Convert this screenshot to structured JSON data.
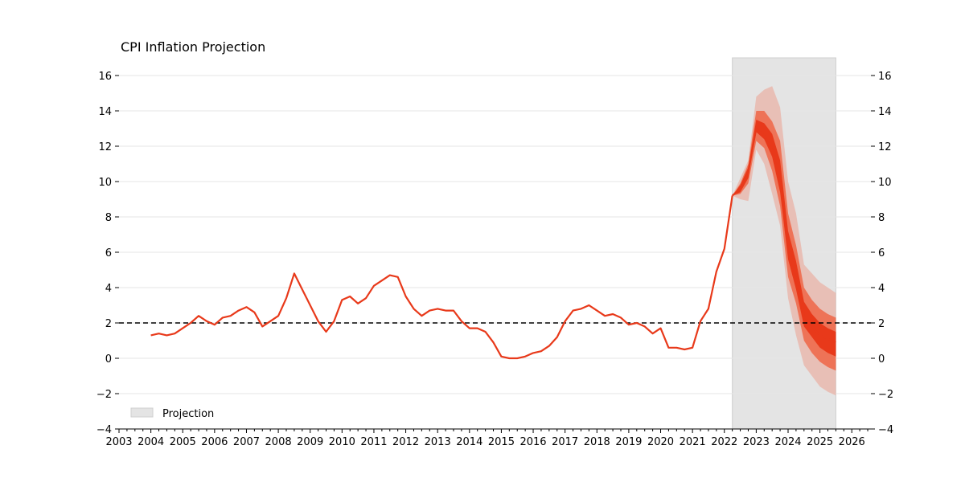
{
  "chart_data": {
    "type": "line",
    "title": "CPI Inflation Projection",
    "xlabel": "",
    "ylabel": "",
    "xlim": [
      2003,
      2026.6
    ],
    "ylim": [
      -4,
      17
    ],
    "x_ticks": [
      2003,
      2004,
      2005,
      2006,
      2007,
      2008,
      2009,
      2010,
      2011,
      2012,
      2013,
      2014,
      2015,
      2016,
      2017,
      2018,
      2019,
      2020,
      2021,
      2022,
      2023,
      2024,
      2025,
      2026
    ],
    "y_ticks": [
      -4,
      -2,
      0,
      2,
      4,
      6,
      8,
      10,
      12,
      14,
      16
    ],
    "grid": "horizontal",
    "target_line": {
      "y": 2,
      "style": "dashed",
      "color": "#000000"
    },
    "projection_region": {
      "label": "Projection",
      "x_start": 2022.25,
      "x_end": 2025.5,
      "color": "#e4e4e4"
    },
    "legend": {
      "position": "bottom-left",
      "entries": [
        "Projection"
      ]
    },
    "colors": {
      "line": "#e8391a",
      "band_inner": "#e8391a",
      "band_mid": "#ee7357",
      "band_outer": "#e8bfb6"
    },
    "series": [
      {
        "x": [
          2004.0,
          2004.25,
          2004.5,
          2004.75,
          2005.0,
          2005.25,
          2005.5,
          2005.75,
          2006.0,
          2006.25,
          2006.5,
          2006.75,
          2007.0,
          2007.25,
          2007.5,
          2007.75,
          2008.0,
          2008.25,
          2008.5,
          2008.75,
          2009.0,
          2009.25,
          2009.5,
          2009.75,
          2010.0,
          2010.25,
          2010.5,
          2010.75,
          2011.0,
          2011.25,
          2011.5,
          2011.75,
          2012.0,
          2012.25,
          2012.5,
          2012.75,
          2013.0,
          2013.25,
          2013.5,
          2013.75,
          2014.0,
          2014.25,
          2014.5,
          2014.75,
          2015.0,
          2015.25,
          2015.5,
          2015.75,
          2016.0,
          2016.25,
          2016.5,
          2016.75,
          2017.0,
          2017.25,
          2017.5,
          2017.75,
          2018.0,
          2018.25,
          2018.5,
          2018.75,
          2019.0,
          2019.25,
          2019.5,
          2019.75,
          2020.0,
          2020.25,
          2020.5,
          2020.75,
          2021.0,
          2021.25,
          2021.5,
          2021.75,
          2022.0,
          2022.25
        ],
        "values": [
          1.3,
          1.4,
          1.3,
          1.4,
          1.7,
          2.0,
          2.4,
          2.1,
          1.9,
          2.3,
          2.4,
          2.7,
          2.9,
          2.6,
          1.8,
          2.1,
          2.4,
          3.4,
          4.8,
          3.9,
          3.0,
          2.1,
          1.5,
          2.1,
          3.3,
          3.5,
          3.1,
          3.4,
          4.1,
          4.4,
          4.7,
          4.6,
          3.5,
          2.8,
          2.4,
          2.7,
          2.8,
          2.7,
          2.7,
          2.1,
          1.7,
          1.7,
          1.5,
          0.9,
          0.1,
          0.0,
          0.0,
          0.1,
          0.3,
          0.4,
          0.7,
          1.2,
          2.1,
          2.7,
          2.8,
          3.0,
          2.7,
          2.4,
          2.5,
          2.3,
          1.9,
          2.0,
          1.8,
          1.4,
          1.7,
          0.6,
          0.6,
          0.5,
          0.6,
          2.1,
          2.8,
          4.9,
          6.2,
          9.2
        ]
      },
      {
        "x": [
          2022.25,
          2022.5,
          2022.75,
          2023.0,
          2023.25,
          2023.5,
          2023.75,
          2024.0,
          2024.25,
          2024.5,
          2024.75,
          2025.0,
          2025.25,
          2025.5
        ],
        "values": [
          9.2,
          9.6,
          10.6,
          13.0,
          12.6,
          11.8,
          9.9,
          6.5,
          4.5,
          2.4,
          1.8,
          1.3,
          1.1,
          0.9
        ]
      }
    ],
    "fan_bands": {
      "x": [
        2022.25,
        2022.5,
        2022.75,
        2023.0,
        2023.25,
        2023.5,
        2023.75,
        2024.0,
        2024.25,
        2024.5,
        2024.75,
        2025.0,
        2025.25,
        2025.5
      ],
      "outer": {
        "low": [
          9.2,
          9.0,
          8.9,
          11.8,
          11.0,
          9.3,
          7.5,
          3.4,
          1.3,
          -0.4,
          -1.0,
          -1.6,
          -1.9,
          -2.1
        ],
        "high": [
          9.2,
          10.2,
          11.2,
          14.8,
          15.2,
          15.4,
          14.2,
          10.0,
          8.2,
          5.3,
          4.8,
          4.3,
          4.0,
          3.7
        ]
      },
      "mid": {
        "low": [
          9.2,
          9.3,
          9.9,
          12.3,
          11.9,
          10.6,
          8.6,
          4.6,
          3.1,
          1.0,
          0.3,
          -0.2,
          -0.5,
          -0.7
        ],
        "high": [
          9.2,
          9.9,
          11.0,
          14.0,
          14.0,
          13.4,
          12.3,
          8.2,
          6.4,
          4.0,
          3.3,
          2.8,
          2.5,
          2.3
        ]
      },
      "inner": {
        "low": [
          9.2,
          9.4,
          10.2,
          12.8,
          12.4,
          11.4,
          9.4,
          5.6,
          3.9,
          1.8,
          1.2,
          0.6,
          0.3,
          0.1
        ],
        "high": [
          9.2,
          9.8,
          10.8,
          13.5,
          13.3,
          12.7,
          11.2,
          7.2,
          5.5,
          3.2,
          2.5,
          2.0,
          1.7,
          1.5
        ]
      }
    }
  }
}
